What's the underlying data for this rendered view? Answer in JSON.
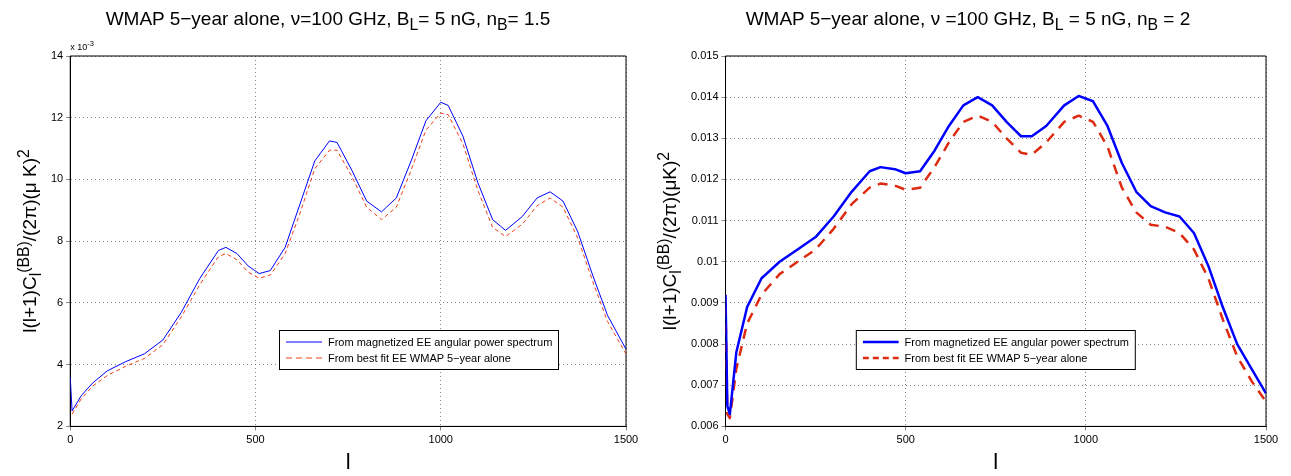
{
  "chart_data": [
    {
      "type": "line",
      "title": "WMAP 5−year alone, ν=100 GHz, B$_{L}$= 5 nG, n$_{B}$= 1.5",
      "xlabel": "l",
      "ylabel": "l(l+1)C$_{l}$$^{(BB)}$/(2π)(μ K)$^{2}$",
      "annotations": [
        "x 10$^{-3}$"
      ],
      "x": [
        0,
        5,
        10,
        30,
        60,
        100,
        150,
        200,
        250,
        300,
        350,
        400,
        420,
        450,
        480,
        510,
        540,
        580,
        620,
        660,
        700,
        720,
        760,
        800,
        840,
        880,
        920,
        960,
        1000,
        1020,
        1060,
        1100,
        1140,
        1175,
        1220,
        1260,
        1295,
        1330,
        1370,
        1410,
        1450,
        1500
      ],
      "series": [
        {
          "name": "From magnetized EE angular power spectrum",
          "color": "#0000ff",
          "line_style": "solid",
          "values": [
            3.6,
            2.5,
            2.6,
            3.0,
            3.4,
            3.8,
            4.1,
            4.35,
            4.8,
            5.7,
            6.8,
            7.7,
            7.8,
            7.6,
            7.2,
            6.95,
            7.05,
            7.8,
            9.2,
            10.6,
            11.25,
            11.2,
            10.3,
            9.3,
            8.95,
            9.4,
            10.6,
            11.9,
            12.5,
            12.4,
            11.4,
            9.9,
            8.7,
            8.35,
            8.8,
            9.4,
            9.6,
            9.3,
            8.3,
            6.9,
            5.6,
            4.5
          ]
        },
        {
          "name": "From best fit EE WMAP 5−year alone",
          "color": "#f0401c",
          "line_style": "dashed",
          "values": [
            null,
            2.4,
            2.5,
            2.9,
            3.3,
            3.65,
            3.95,
            4.2,
            4.65,
            5.55,
            6.6,
            7.5,
            7.6,
            7.4,
            7.0,
            6.8,
            6.9,
            7.6,
            8.9,
            10.35,
            10.95,
            10.95,
            10.1,
            9.1,
            8.7,
            9.1,
            10.3,
            11.6,
            12.15,
            12.1,
            11.15,
            9.65,
            8.45,
            8.15,
            8.55,
            9.15,
            9.4,
            9.1,
            8.1,
            6.7,
            5.4,
            4.35
          ]
        }
      ],
      "xlim": [
        0,
        1500
      ],
      "xticks": [
        0,
        500,
        1000,
        1500
      ],
      "ylim": [
        2,
        14
      ],
      "yticks": [
        2,
        4,
        6,
        8,
        10,
        12,
        14
      ],
      "grid": true,
      "legend": "bottom right",
      "marker": "none"
    },
    {
      "type": "line",
      "title": "WMAP 5−year alone, ν =100 GHz, B$_{L}$ = 5 nG, n$_{B}$ = 2",
      "xlabel": "l",
      "ylabel": "l(l+1)C$_{l}$$^{(BB)}$/(2π)(μK)$^{2}$",
      "x": [
        0,
        5,
        12,
        30,
        60,
        100,
        150,
        200,
        250,
        300,
        350,
        400,
        430,
        470,
        500,
        540,
        580,
        620,
        660,
        700,
        740,
        780,
        820,
        850,
        890,
        940,
        980,
        1020,
        1060,
        1100,
        1140,
        1180,
        1220,
        1260,
        1300,
        1340,
        1380,
        1420,
        1460,
        1500
      ],
      "series": [
        {
          "name": "From magnetized EE angular power spectrum",
          "color": "#0000ff",
          "line_style": "solid",
          "values": [
            0.0092,
            0.0065,
            0.0063,
            0.0078,
            0.0089,
            0.0096,
            0.01,
            0.0103,
            0.0106,
            0.0111,
            0.0117,
            0.0122,
            0.0123,
            0.01225,
            0.01215,
            0.0122,
            0.0127,
            0.0133,
            0.0138,
            0.014,
            0.0138,
            0.0134,
            0.01305,
            0.01305,
            0.0133,
            0.0138,
            0.01403,
            0.0139,
            0.0133,
            0.0124,
            0.0117,
            0.01135,
            0.0112,
            0.0111,
            0.0107,
            0.0099,
            0.0089,
            0.008,
            0.0074,
            0.0068
          ]
        },
        {
          "name": "From best fit EE WMAP 5−year alone",
          "color": "#dd2a10",
          "line_style": "dashed",
          "values": [
            0.0089,
            0.0063,
            0.0062,
            0.0074,
            0.0085,
            0.0092,
            0.0097,
            0.01,
            0.0103,
            0.0108,
            0.0114,
            0.0118,
            0.0119,
            0.01185,
            0.01175,
            0.0118,
            0.0123,
            0.0129,
            0.0134,
            0.01355,
            0.0134,
            0.013,
            0.01265,
            0.0126,
            0.0129,
            0.0134,
            0.01355,
            0.0134,
            0.0128,
            0.0118,
            0.0112,
            0.0109,
            0.01085,
            0.0107,
            0.0103,
            0.0096,
            0.0086,
            0.0077,
            0.0071,
            0.0066
          ]
        }
      ],
      "xlim": [
        0,
        1500
      ],
      "xticks": [
        0,
        500,
        1000,
        1500
      ],
      "ylim": [
        0.006,
        0.015
      ],
      "yticks": [
        0.006,
        0.007,
        0.008,
        0.009,
        0.01,
        0.011,
        0.012,
        0.013,
        0.014,
        0.015
      ],
      "grid": true,
      "legend": "bottom",
      "marker": "none"
    }
  ]
}
